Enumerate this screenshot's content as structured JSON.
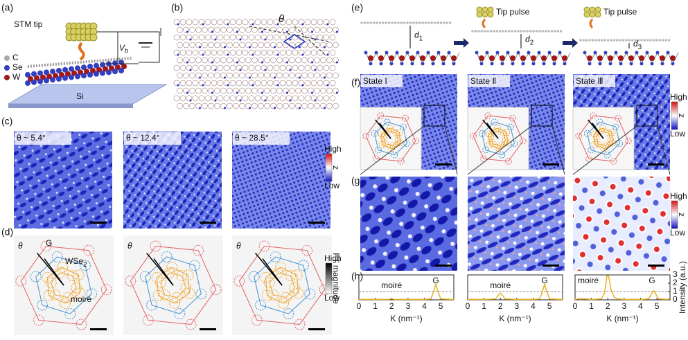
{
  "panel_labels": [
    "(a)",
    "(b)",
    "(c)",
    "(d)",
    "(e)",
    "(f)",
    "(g)",
    "(h)"
  ],
  "a": {
    "stm_tip": "STM tip",
    "bias": "V",
    "bias_sub": "b",
    "legend": [
      "C",
      "Se",
      "W"
    ],
    "substrate": "Si"
  },
  "b": {
    "angle": "θ"
  },
  "c": {
    "angles": [
      "θ ~ 5.4°",
      "θ ~ 12.4°",
      "θ ~ 28.5°"
    ],
    "colorbar": {
      "high": "High",
      "low": "Low",
      "label": "z"
    }
  },
  "d": {
    "angle": "θ",
    "g_label": "G",
    "wse2": "WSe",
    "wse2_sub": "2",
    "moire": "moiré",
    "colorbar": {
      "high": "High",
      "low": "Low",
      "label": "FT magnitude"
    }
  },
  "e": {
    "pulse": [
      "Tip pulse",
      "Tip pulse"
    ],
    "gaps": [
      {
        "symbol": "d",
        "sub": "1"
      },
      {
        "symbol": "d",
        "sub": "2"
      },
      {
        "symbol": "d",
        "sub": "3"
      }
    ]
  },
  "f": {
    "states": [
      "State Ⅰ",
      "State Ⅱ",
      "State Ⅲ"
    ],
    "colorbar": {
      "high": "High",
      "low": "Low",
      "label": "z"
    }
  },
  "g": {
    "colorbar": {
      "high": "High",
      "low": "Low",
      "label": "z"
    }
  },
  "h": {
    "x_label": "K (nm⁻¹)",
    "y_label": "Intensity (a.u.)",
    "xlim": [
      0,
      5.8
    ],
    "xticks": [
      0,
      1,
      2,
      3,
      4,
      5
    ],
    "ylim": [
      0,
      3
    ],
    "yticks": [
      0,
      1,
      2,
      3
    ],
    "reference": 1,
    "plots": [
      {
        "moire_label": "moiré",
        "g_label": "G",
        "x": [
          0,
          0.3,
          1,
          1.8,
          2,
          2.2,
          3,
          4,
          4.4,
          4.6,
          4.7,
          4.8,
          5,
          5.8
        ],
        "y": [
          0.05,
          0.05,
          0.05,
          0.05,
          0.12,
          0.05,
          0.05,
          0.05,
          0.1,
          1.2,
          1.9,
          1.2,
          0.1,
          0.05
        ]
      },
      {
        "moire_label": "moiré",
        "g_label": "G",
        "x": [
          0,
          0.3,
          1,
          1.7,
          1.9,
          2,
          2.1,
          2.3,
          3,
          4,
          4.4,
          4.6,
          4.7,
          4.8,
          5,
          5.8
        ],
        "y": [
          0.05,
          0.05,
          0.05,
          0.1,
          0.6,
          0.8,
          0.6,
          0.1,
          0.05,
          0.05,
          0.1,
          1.2,
          1.9,
          1.2,
          0.1,
          0.05
        ]
      },
      {
        "moire_label": "moiré",
        "g_label": "G",
        "x": [
          0,
          0.3,
          1,
          1.6,
          1.8,
          1.95,
          2.05,
          2.2,
          2.4,
          2.6,
          3,
          4,
          4.5,
          4.7,
          4.8,
          4.9,
          5.1,
          5.8
        ],
        "y": [
          0.05,
          0.15,
          0.05,
          0.1,
          0.8,
          2.9,
          2.9,
          1.2,
          0.3,
          0.1,
          0.05,
          0.05,
          0.1,
          0.8,
          1.1,
          0.8,
          0.1,
          0.05
        ]
      }
    ]
  }
}
